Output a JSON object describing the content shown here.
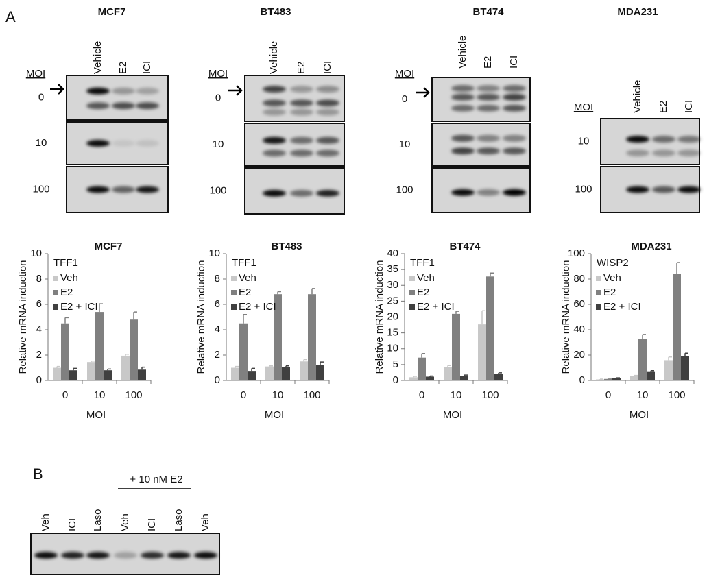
{
  "panel_labels": [
    "A",
    "B"
  ],
  "blots": [
    {
      "title": "MCF7",
      "lanes": [
        "Vehicle",
        "E2",
        "ICI"
      ],
      "moi_header": "MOI",
      "rows": [
        "0",
        "10",
        "100"
      ]
    },
    {
      "title": "BT483",
      "lanes": [
        "Vehicle",
        "E2",
        "ICI"
      ],
      "moi_header": "MOI",
      "rows": [
        "0",
        "10",
        "100"
      ]
    },
    {
      "title": "BT474",
      "lanes": [
        "Vehicle",
        "E2",
        "ICI"
      ],
      "moi_header": "MOI",
      "rows": [
        "0",
        "10",
        "100"
      ]
    },
    {
      "title": "MDA231",
      "lanes": [
        "Vehicle",
        "E2",
        "ICI"
      ],
      "moi_header": "MOI",
      "rows": [
        "10",
        "100"
      ]
    }
  ],
  "blot_b": {
    "group_label": "+ 10 nM E2",
    "lanes": [
      "Veh",
      "ICI",
      "Laso",
      "Veh",
      "ICI",
      "Laso",
      "Veh"
    ]
  },
  "chart_data": [
    {
      "type": "bar",
      "title": "MCF7",
      "ylabel": "Relative mRNA induction",
      "xlabel": "MOI",
      "legend_title": "TFF1",
      "categories": [
        "0",
        "10",
        "100"
      ],
      "ylim": [
        0,
        10
      ],
      "yticks": [
        0,
        2,
        4,
        6,
        8,
        10
      ],
      "grid": false,
      "series": [
        {
          "name": "Veh",
          "color": "#c8c8c8",
          "values": [
            1.0,
            1.45,
            1.95
          ],
          "errors": [
            0.1,
            0.08,
            0.12
          ]
        },
        {
          "name": "E2",
          "color": "#808080",
          "values": [
            4.5,
            5.4,
            4.8
          ],
          "errors": [
            0.45,
            0.65,
            0.6
          ]
        },
        {
          "name": "E2 + ICI",
          "color": "#404040",
          "values": [
            0.8,
            0.8,
            0.85
          ],
          "errors": [
            0.15,
            0.1,
            0.2
          ]
        }
      ]
    },
    {
      "type": "bar",
      "title": "BT483",
      "ylabel": "Relative mRNA induction",
      "xlabel": "MOI",
      "legend_title": "TFF1",
      "categories": [
        "0",
        "10",
        "100"
      ],
      "ylim": [
        0,
        10
      ],
      "yticks": [
        0,
        2,
        4,
        6,
        8,
        10
      ],
      "grid": false,
      "series": [
        {
          "name": "Veh",
          "color": "#c8c8c8",
          "values": [
            1.0,
            1.1,
            1.5
          ],
          "errors": [
            0.1,
            0.05,
            0.15
          ]
        },
        {
          "name": "E2",
          "color": "#808080",
          "values": [
            4.5,
            6.8,
            6.8
          ],
          "errors": [
            0.7,
            0.2,
            0.45
          ]
        },
        {
          "name": "E2 + ICI",
          "color": "#404040",
          "values": [
            0.75,
            1.05,
            1.2
          ],
          "errors": [
            0.2,
            0.1,
            0.25
          ]
        }
      ]
    },
    {
      "type": "bar",
      "title": "BT474",
      "ylabel": "Relative mRNA induction",
      "xlabel": "MOI",
      "legend_title": "TFF1",
      "categories": [
        "0",
        "10",
        "100"
      ],
      "ylim": [
        0,
        40
      ],
      "yticks": [
        0,
        5,
        10,
        15,
        20,
        25,
        30,
        35,
        40
      ],
      "grid": false,
      "series": [
        {
          "name": "Veh",
          "color": "#c8c8c8",
          "values": [
            1.0,
            4.3,
            17.7
          ],
          "errors": [
            0.3,
            0.4,
            4.3
          ]
        },
        {
          "name": "E2",
          "color": "#808080",
          "values": [
            7.2,
            21,
            32.8
          ],
          "errors": [
            1.3,
            0.8,
            1.1
          ]
        },
        {
          "name": "E2 + ICI",
          "color": "#404040",
          "values": [
            1.2,
            1.5,
            2.0
          ],
          "errors": [
            0.2,
            0.2,
            0.4
          ]
        }
      ]
    },
    {
      "type": "bar",
      "title": "MDA231",
      "ylabel": "Relative mRNA induction",
      "xlabel": "MOI",
      "legend_title": "WISP2",
      "categories": [
        "0",
        "10",
        "100"
      ],
      "ylim": [
        0,
        100
      ],
      "yticks": [
        0,
        20,
        40,
        60,
        80,
        100
      ],
      "grid": false,
      "series": [
        {
          "name": "Veh",
          "color": "#c8c8c8",
          "values": [
            0.8,
            3.5,
            16
          ],
          "errors": [
            0.3,
            0.5,
            2.5
          ]
        },
        {
          "name": "E2",
          "color": "#808080",
          "values": [
            1.2,
            32.5,
            84
          ],
          "errors": [
            0.4,
            3.8,
            9
          ]
        },
        {
          "name": "E2 + ICI",
          "color": "#404040",
          "values": [
            1.8,
            7.2,
            19
          ],
          "errors": [
            0.3,
            0.5,
            2.5
          ]
        }
      ]
    }
  ]
}
